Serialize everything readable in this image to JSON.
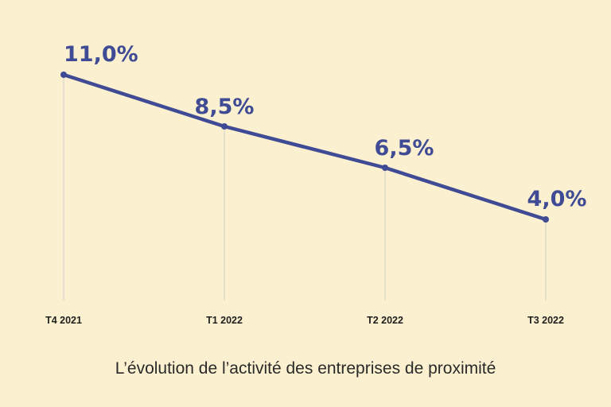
{
  "colors": {
    "background": "#fbf0cf",
    "series": "#404b95",
    "grid": "#d7d5ce",
    "tick_text": "#1f1f1f",
    "caption_text": "#2a2a2a"
  },
  "caption": "L’évolution de l’activité des entreprises de proximité",
  "chart_data": {
    "type": "line",
    "title": "",
    "xlabel": "",
    "ylabel": "",
    "categories": [
      "T4 2021",
      "T1 2022",
      "T2 2022",
      "T3 2022"
    ],
    "series": [
      {
        "values": [
          11.0,
          8.5,
          6.5,
          4.0
        ],
        "data_labels": [
          "11,0%",
          "8,5%",
          "6,5%",
          "4,0%"
        ]
      }
    ],
    "ylim": [
      0,
      11
    ],
    "grid": "vertical",
    "y_axis_visible": false,
    "legend": "none"
  }
}
